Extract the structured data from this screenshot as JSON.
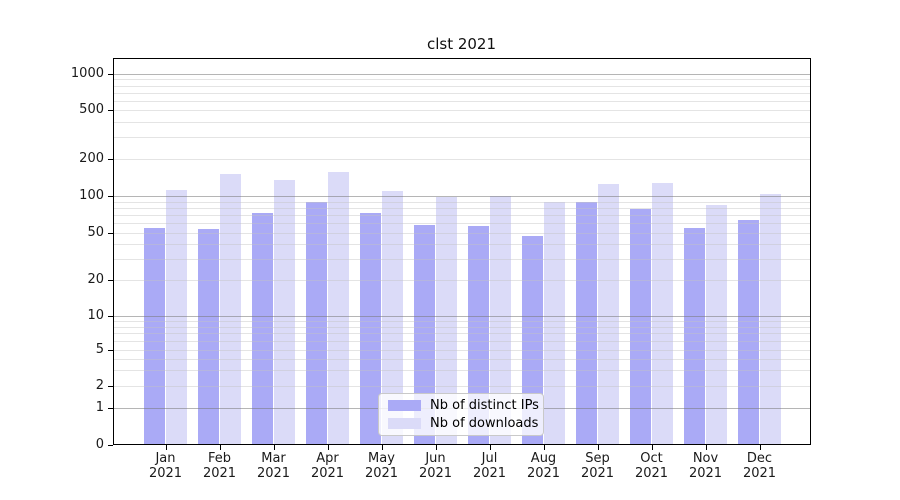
{
  "chart_data": {
    "type": "bar",
    "title": "clst 2021",
    "categories": [
      "Jan 2021",
      "Feb 2021",
      "Mar 2021",
      "Apr 2021",
      "May 2021",
      "Jun 2021",
      "Jul 2021",
      "Aug 2021",
      "Sep 2021",
      "Oct 2021",
      "Nov 2021",
      "Dec 2021"
    ],
    "series": [
      {
        "name": "Nb of distinct IPs",
        "color": "#aaaaf6",
        "values": [
          55,
          54,
          73,
          90,
          73,
          58,
          57,
          47,
          89,
          79,
          55,
          64
        ]
      },
      {
        "name": "Nb of downloads",
        "color": "#dbdbf8",
        "values": [
          112,
          152,
          135,
          157,
          110,
          98,
          100,
          90,
          126,
          127,
          85,
          104
        ]
      }
    ],
    "xlabel": "",
    "ylabel": "",
    "yscale": "symlog",
    "yticks": [
      1000,
      500,
      200,
      100,
      50,
      20,
      10,
      5,
      2,
      1,
      0
    ],
    "ylim": [
      0,
      1300
    ],
    "grid": true,
    "legend_position": "lower center",
    "colors": {
      "axis": "#000000",
      "text": "#1a1a1a",
      "major_gridline": "#787878",
      "minor_gridline": "#c3c3c3",
      "legend_border": "#c9c9c9"
    }
  }
}
